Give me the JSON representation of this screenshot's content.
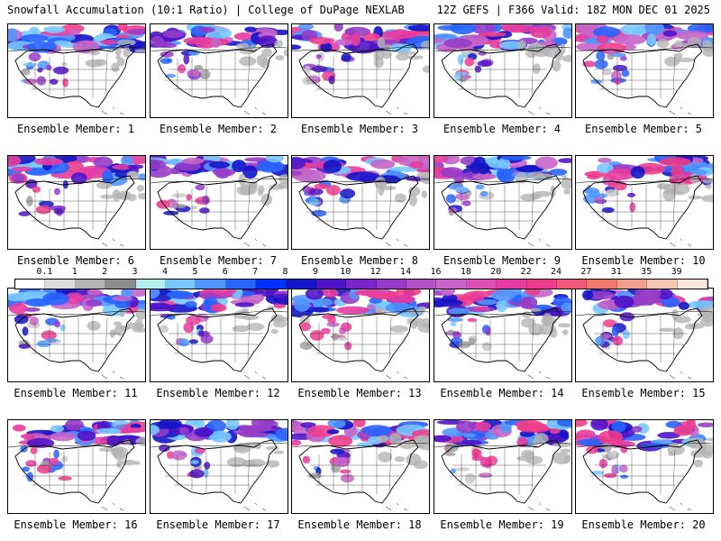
{
  "header": {
    "title": "Snowfall Accumulation (10:1 Ratio) | College of DuPage NEXLAB",
    "run_info": "12Z GEFS | F366 Valid: 18Z MON DEC 01 2025"
  },
  "legend": {
    "ticks": [
      "0.1",
      "1",
      "2",
      "3",
      "4",
      "5",
      "6",
      "7",
      "8",
      "9",
      "10",
      "12",
      "14",
      "16",
      "18",
      "20",
      "22",
      "24",
      "27",
      "31",
      "35",
      "39"
    ],
    "colors": [
      "#ffffff",
      "#dcdcdc",
      "#b4b4b4",
      "#8c8c8c",
      "#b4f0f0",
      "#78c8ff",
      "#5096ff",
      "#2864ff",
      "#0032ff",
      "#1414c8",
      "#5014c8",
      "#7828c8",
      "#963cc8",
      "#b450c8",
      "#c864c8",
      "#dc50b4",
      "#e63ca0",
      "#f03c8c",
      "#f05a78",
      "#f0786e",
      "#f0a08c",
      "#f5c8b4",
      "#fae6dc"
    ]
  },
  "panels": [
    {
      "label": "Ensemble Member: 1",
      "intensity": 0.85
    },
    {
      "label": "Ensemble Member: 2",
      "intensity": 0.75
    },
    {
      "label": "Ensemble Member: 3",
      "intensity": 0.8
    },
    {
      "label": "Ensemble Member: 4",
      "intensity": 0.8
    },
    {
      "label": "Ensemble Member: 5",
      "intensity": 0.85
    },
    {
      "label": "Ensemble Member: 6",
      "intensity": 0.85
    },
    {
      "label": "Ensemble Member: 7",
      "intensity": 0.6
    },
    {
      "label": "Ensemble Member: 8",
      "intensity": 0.8
    },
    {
      "label": "Ensemble Member: 9",
      "intensity": 0.75
    },
    {
      "label": "Ensemble Member: 10",
      "intensity": 0.9
    },
    {
      "label": "Ensemble Member: 11",
      "intensity": 0.75
    },
    {
      "label": "Ensemble Member: 12",
      "intensity": 0.8
    },
    {
      "label": "Ensemble Member: 13",
      "intensity": 0.8
    },
    {
      "label": "Ensemble Member: 14",
      "intensity": 0.8
    },
    {
      "label": "Ensemble Member: 15",
      "intensity": 0.7
    },
    {
      "label": "Ensemble Member: 16",
      "intensity": 0.8
    },
    {
      "label": "Ensemble Member: 17",
      "intensity": 0.55
    },
    {
      "label": "Ensemble Member: 18",
      "intensity": 0.85
    },
    {
      "label": "Ensemble Member: 19",
      "intensity": 0.8
    },
    {
      "label": "Ensemble Member: 20",
      "intensity": 0.9
    }
  ]
}
